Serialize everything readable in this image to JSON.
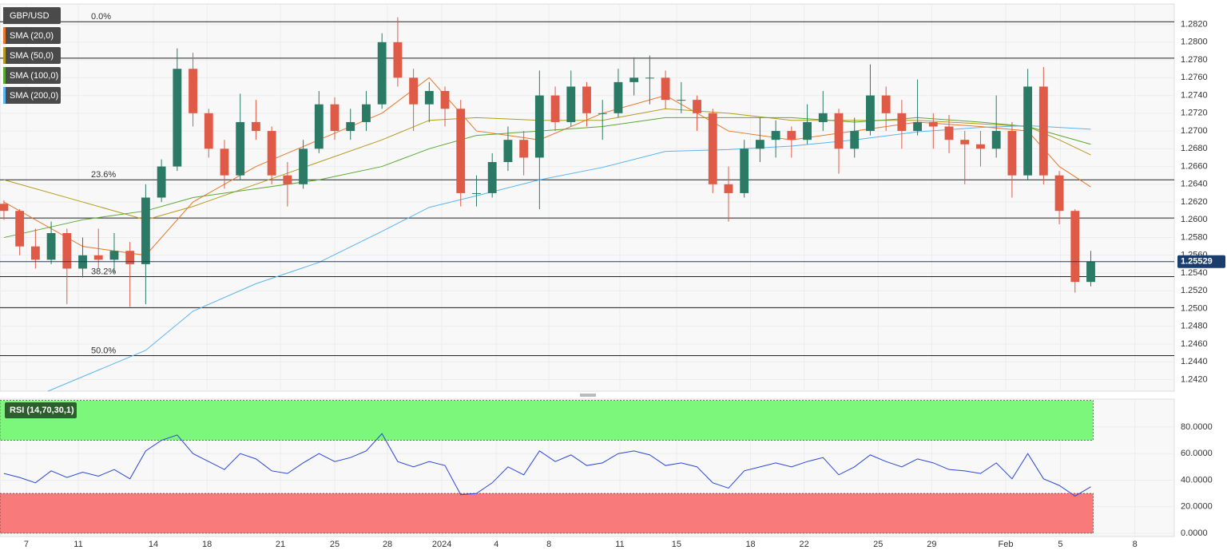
{
  "chart_data": [
    {
      "type": "candlestick",
      "title": "GBP/USD",
      "x": [
        0,
        1,
        2,
        3,
        4,
        5,
        6,
        7,
        8,
        9,
        10,
        11,
        12,
        13,
        14,
        15,
        16,
        17,
        18,
        19,
        20,
        21,
        22,
        23,
        24,
        25,
        26,
        27,
        28,
        29,
        30,
        31,
        32,
        33,
        34,
        35,
        36,
        37,
        38,
        39,
        40,
        41,
        42,
        43,
        44,
        45,
        46,
        47,
        48,
        49,
        50,
        51,
        52,
        53,
        54,
        55,
        56,
        57,
        58,
        59,
        60,
        61,
        62,
        63,
        64,
        65,
        66,
        67,
        68,
        69
      ],
      "open": [
        1.2618,
        1.261,
        1.257,
        1.2555,
        1.2585,
        1.2545,
        1.256,
        1.2555,
        1.2565,
        1.255,
        1.2625,
        1.266,
        1.277,
        1.272,
        1.268,
        1.265,
        1.271,
        1.27,
        1.265,
        1.264,
        1.268,
        1.273,
        1.27,
        1.271,
        1.273,
        1.28,
        1.276,
        1.273,
        1.2745,
        1.2725,
        1.263,
        1.263,
        1.2665,
        1.269,
        1.267,
        1.274,
        1.271,
        1.275,
        1.272,
        1.272,
        1.2755,
        1.276,
        1.276,
        1.2735,
        1.2735,
        1.272,
        1.264,
        1.263,
        1.268,
        1.269,
        1.27,
        1.269,
        1.271,
        1.272,
        1.268,
        1.27,
        1.274,
        1.272,
        1.27,
        1.271,
        1.2705,
        1.269,
        1.2685,
        1.268,
        1.27,
        1.265,
        1.275,
        1.265,
        1.261,
        1.253
      ],
      "high": [
        1.2622,
        1.2612,
        1.259,
        1.2598,
        1.259,
        1.258,
        1.259,
        1.2585,
        1.2575,
        1.264,
        1.2668,
        1.2793,
        1.2788,
        1.2725,
        1.269,
        1.2742,
        1.2735,
        1.2705,
        1.2665,
        1.269,
        1.2745,
        1.2738,
        1.2725,
        1.2745,
        1.281,
        1.2828,
        1.277,
        1.2755,
        1.275,
        1.2735,
        1.265,
        1.2675,
        1.2705,
        1.27,
        1.2768,
        1.275,
        1.2768,
        1.2755,
        1.2735,
        1.277,
        1.2783,
        1.2785,
        1.2768,
        1.2755,
        1.274,
        1.2725,
        1.266,
        1.269,
        1.2715,
        1.2712,
        1.2705,
        1.273,
        1.2745,
        1.2725,
        1.2715,
        1.2775,
        1.275,
        1.2735,
        1.2758,
        1.272,
        1.2718,
        1.27,
        1.27,
        1.274,
        1.271,
        1.277,
        1.2772,
        1.2655,
        1.2612,
        1.2565
      ],
      "low": [
        1.26,
        1.256,
        1.2545,
        1.255,
        1.2505,
        1.2535,
        1.2545,
        1.254,
        1.2502,
        1.2505,
        1.262,
        1.2655,
        1.2705,
        1.267,
        1.2635,
        1.2645,
        1.269,
        1.264,
        1.2615,
        1.2635,
        1.2675,
        1.269,
        1.269,
        1.27,
        1.2725,
        1.275,
        1.27,
        1.271,
        1.2705,
        1.2615,
        1.2615,
        1.2625,
        1.2655,
        1.265,
        1.2612,
        1.27,
        1.2705,
        1.2705,
        1.269,
        1.2715,
        1.274,
        1.273,
        1.2725,
        1.272,
        1.27,
        1.263,
        1.2598,
        1.2625,
        1.2665,
        1.267,
        1.267,
        1.2685,
        1.27,
        1.2652,
        1.267,
        1.2695,
        1.27,
        1.268,
        1.2695,
        1.268,
        1.2675,
        1.264,
        1.266,
        1.267,
        1.2625,
        1.2645,
        1.264,
        1.2595,
        1.2518,
        1.2525
      ],
      "close": [
        1.261,
        1.257,
        1.2555,
        1.2585,
        1.2545,
        1.256,
        1.2555,
        1.2565,
        1.255,
        1.2625,
        1.266,
        1.277,
        1.272,
        1.268,
        1.265,
        1.271,
        1.27,
        1.265,
        1.264,
        1.268,
        1.273,
        1.27,
        1.271,
        1.273,
        1.28,
        1.276,
        1.273,
        1.2745,
        1.2725,
        1.263,
        1.263,
        1.2665,
        1.269,
        1.267,
        1.274,
        1.271,
        1.275,
        1.272,
        1.272,
        1.2755,
        1.276,
        1.276,
        1.2735,
        1.2735,
        1.272,
        1.264,
        1.263,
        1.268,
        1.269,
        1.27,
        1.269,
        1.271,
        1.272,
        1.268,
        1.27,
        1.274,
        1.272,
        1.27,
        1.271,
        1.2705,
        1.269,
        1.2685,
        1.268,
        1.27,
        1.265,
        1.275,
        1.265,
        1.261,
        1.253,
        1.2553
      ],
      "up_color": "#2b7a66",
      "down_color": "#e05a48",
      "overlays": [
        {
          "name": "SMA (20,0)",
          "color": "#e8762b",
          "x": [
            0,
            5,
            9,
            12,
            16,
            20,
            24,
            27,
            30,
            34,
            38,
            42,
            46,
            50,
            54,
            58,
            62,
            65,
            67,
            69
          ],
          "values": [
            1.262,
            1.257,
            1.256,
            1.262,
            1.266,
            1.269,
            1.272,
            1.276,
            1.27,
            1.269,
            1.272,
            1.274,
            1.27,
            1.269,
            1.27,
            1.271,
            1.2705,
            1.27,
            1.266,
            1.2637
          ]
        },
        {
          "name": "SMA (50,0)",
          "color": "#b59a1e",
          "x": [
            0,
            5,
            9,
            12,
            16,
            20,
            24,
            27,
            30,
            34,
            38,
            42,
            46,
            50,
            54,
            58,
            62,
            65,
            67,
            69
          ],
          "values": [
            1.2645,
            1.262,
            1.26,
            1.2615,
            1.264,
            1.2665,
            1.269,
            1.2712,
            1.2715,
            1.2712,
            1.2712,
            1.2725,
            1.272,
            1.2712,
            1.2712,
            1.2712,
            1.2708,
            1.2705,
            1.269,
            1.2673
          ]
        },
        {
          "name": "SMA (100,0)",
          "color": "#5aa832",
          "x": [
            0,
            5,
            9,
            12,
            16,
            20,
            24,
            27,
            30,
            34,
            38,
            42,
            46,
            50,
            54,
            58,
            62,
            65,
            67,
            69
          ],
          "values": [
            1.258,
            1.26,
            1.261,
            1.2625,
            1.2635,
            1.2645,
            1.266,
            1.268,
            1.2695,
            1.27,
            1.2705,
            1.2715,
            1.2715,
            1.2715,
            1.271,
            1.2715,
            1.271,
            1.2705,
            1.2695,
            1.2685
          ]
        },
        {
          "name": "SMA (200,0)",
          "color": "#5ab4f0",
          "x": [
            2.8,
            9,
            12,
            16,
            20,
            24,
            27,
            30,
            34,
            38,
            42,
            46,
            50,
            54,
            58,
            62,
            65,
            69
          ],
          "values": [
            1.2407,
            1.2453,
            1.2497,
            1.2528,
            1.2552,
            1.2587,
            1.2614,
            1.2627,
            1.2645,
            1.2659,
            1.2677,
            1.2679,
            1.2683,
            1.269,
            1.2699,
            1.2704,
            1.2706,
            1.2702
          ]
        }
      ],
      "levels": [
        {
          "value": 1.2823,
          "label": "0.0%"
        },
        {
          "value": 1.2782,
          "label": null
        },
        {
          "value": 1.2645,
          "label": "23.6%"
        },
        {
          "value": 1.2602,
          "label": null
        },
        {
          "value": 1.2536,
          "label": "38.2%"
        },
        {
          "value": 1.2501,
          "label": null
        },
        {
          "value": 1.2447,
          "label": "50.0%"
        }
      ],
      "last_price": 1.25529,
      "xlim": [
        -0.25,
        74.3
      ],
      "ylim": [
        1.2407,
        1.2843
      ],
      "yticks": [
        {
          "value": 1.242,
          "label": "1.2420"
        },
        {
          "value": 1.244,
          "label": "1.2440"
        },
        {
          "value": 1.246,
          "label": "1.2460"
        },
        {
          "value": 1.248,
          "label": "1.2480"
        },
        {
          "value": 1.25,
          "label": "1.2500"
        },
        {
          "value": 1.252,
          "label": "1.2520"
        },
        {
          "value": 1.254,
          "label": "1.2540"
        },
        {
          "value": 1.256,
          "label": "1.2560"
        },
        {
          "value": 1.258,
          "label": "1.2580"
        },
        {
          "value": 1.26,
          "label": "1.2600"
        },
        {
          "value": 1.262,
          "label": "1.2620"
        },
        {
          "value": 1.264,
          "label": "1.2640"
        },
        {
          "value": 1.266,
          "label": "1.2660"
        },
        {
          "value": 1.268,
          "label": "1.2680"
        },
        {
          "value": 1.27,
          "label": "1.2700"
        },
        {
          "value": 1.272,
          "label": "1.2720"
        },
        {
          "value": 1.274,
          "label": "1.2740"
        },
        {
          "value": 1.276,
          "label": "1.2760"
        },
        {
          "value": 1.278,
          "label": "1.2780"
        },
        {
          "value": 1.28,
          "label": "1.2800"
        },
        {
          "value": 1.282,
          "label": "1.2820"
        }
      ],
      "grid": true
    },
    {
      "type": "line",
      "title": "RSI (14,70,30,1)",
      "color": "#2a47d8",
      "x": [
        0,
        1,
        2,
        3,
        4,
        5,
        6,
        7,
        8,
        9,
        10,
        11,
        12,
        13,
        14,
        15,
        16,
        17,
        18,
        19,
        20,
        21,
        22,
        23,
        24,
        25,
        26,
        27,
        28,
        29,
        30,
        31,
        32,
        33,
        34,
        35,
        36,
        37,
        38,
        39,
        40,
        41,
        42,
        43,
        44,
        45,
        46,
        47,
        48,
        49,
        50,
        51,
        52,
        53,
        54,
        55,
        56,
        57,
        58,
        59,
        60,
        61,
        62,
        63,
        64,
        65,
        66,
        67,
        68,
        69
      ],
      "values": [
        45,
        42,
        38,
        47,
        42,
        46,
        43,
        48,
        41,
        62,
        70,
        74,
        60,
        54,
        48,
        60,
        56,
        47,
        45,
        53,
        60,
        54,
        57,
        62,
        75,
        54,
        50,
        54,
        51,
        29,
        30,
        38,
        50,
        44,
        62,
        54,
        59,
        51,
        53,
        60,
        62,
        59,
        51,
        53,
        50,
        38,
        34,
        47,
        50,
        53,
        50,
        54,
        57,
        44,
        50,
        59,
        54,
        50,
        56,
        53,
        48,
        47,
        45,
        53,
        41,
        60,
        41,
        36,
        28,
        35
      ],
      "bands": [
        {
          "from": 70,
          "to": 100,
          "color": "#7cf77c"
        },
        {
          "from": 0,
          "to": 30,
          "color": "#f97a7a"
        }
      ],
      "xlim": [
        -0.25,
        74.3
      ],
      "ylim": [
        -2.4,
        101
      ],
      "yticks": [
        {
          "value": 0,
          "label": "0.0000"
        },
        {
          "value": 20,
          "label": "20.0000"
        },
        {
          "value": 40,
          "label": "40.0000"
        },
        {
          "value": 60,
          "label": "60.0000"
        },
        {
          "value": 80,
          "label": "80.0000"
        }
      ],
      "xticks": [
        {
          "value": 1.42,
          "label": "7"
        },
        {
          "value": 4.72,
          "label": "11"
        },
        {
          "value": 9.49,
          "label": "14"
        },
        {
          "value": 12.89,
          "label": "18"
        },
        {
          "value": 17.55,
          "label": "21"
        },
        {
          "value": 21.0,
          "label": "25"
        },
        {
          "value": 24.35,
          "label": "28"
        },
        {
          "value": 27.8,
          "label": "2024"
        },
        {
          "value": 31.25,
          "label": "4"
        },
        {
          "value": 34.6,
          "label": "8"
        },
        {
          "value": 39.1,
          "label": "11"
        },
        {
          "value": 42.7,
          "label": "15"
        },
        {
          "value": 47.4,
          "label": "18"
        },
        {
          "value": 50.8,
          "label": "22"
        },
        {
          "value": 55.5,
          "label": "25"
        },
        {
          "value": 58.9,
          "label": "29"
        },
        {
          "value": 63.6,
          "label": "Feb"
        },
        {
          "value": 67.07,
          "label": "5"
        },
        {
          "value": 71.8,
          "label": "8"
        }
      ],
      "grid": true
    }
  ]
}
